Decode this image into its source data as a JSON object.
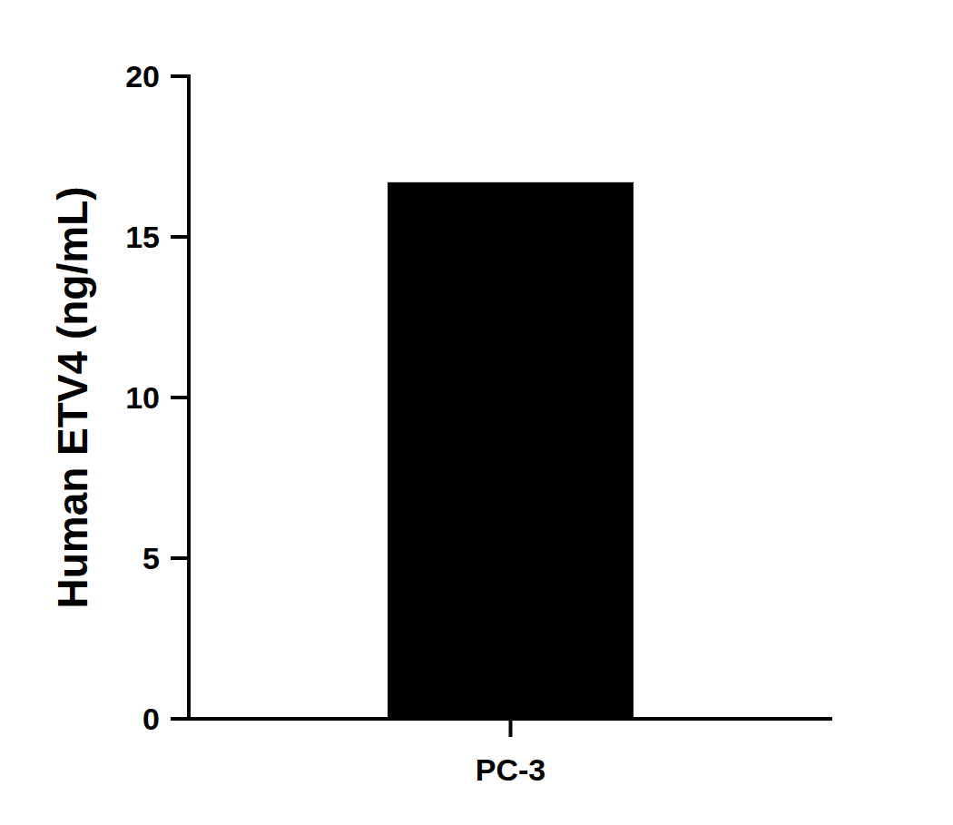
{
  "chart_data": {
    "type": "bar",
    "y_label": "Human ETV4 (ng/mL)",
    "categories": [
      "PC-3"
    ],
    "values": [
      16.7
    ],
    "color": "#000000",
    "ylim": [
      0,
      20
    ],
    "yticks": [
      0,
      5,
      10,
      15,
      20
    ],
    "grid": false
  }
}
